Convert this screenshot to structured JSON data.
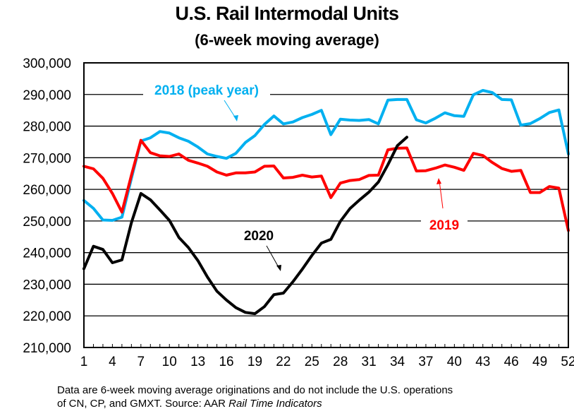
{
  "chart_data": {
    "type": "line",
    "title": "U.S. Rail Intermodal Units",
    "subtitle": "(6-week moving average)",
    "xlabel": "",
    "ylabel": "",
    "xlim": [
      1,
      52
    ],
    "ylim": [
      210000,
      300000
    ],
    "x_ticks": [
      1,
      4,
      7,
      10,
      13,
      16,
      19,
      22,
      25,
      28,
      31,
      34,
      37,
      40,
      43,
      46,
      49,
      52
    ],
    "y_ticks": [
      210000,
      220000,
      230000,
      240000,
      250000,
      260000,
      270000,
      280000,
      290000,
      300000
    ],
    "y_tick_labels": [
      "210,000",
      "220,000",
      "230,000",
      "240,000",
      "250,000",
      "260,000",
      "270,000",
      "280,000",
      "290,000",
      "300,000"
    ],
    "grid": true,
    "legend": "inline annotations",
    "series": [
      {
        "name": "2018 (peak year)",
        "label": "2018 (peak year)",
        "color": "#00B0F0",
        "x": [
          1,
          2,
          3,
          4,
          5,
          6,
          7,
          8,
          9,
          10,
          11,
          12,
          13,
          14,
          15,
          16,
          17,
          18,
          19,
          20,
          21,
          22,
          23,
          24,
          25,
          26,
          27,
          28,
          29,
          30,
          31,
          32,
          33,
          34,
          35,
          36,
          37,
          38,
          39,
          40,
          41,
          42,
          43,
          44,
          45,
          46,
          47,
          48,
          49,
          50,
          51,
          52
        ],
        "values": [
          256500,
          254000,
          250300,
          250200,
          251200,
          263500,
          275300,
          276300,
          278300,
          277800,
          276300,
          275200,
          273400,
          271200,
          270400,
          269800,
          271400,
          274800,
          277000,
          280500,
          283200,
          280700,
          281300,
          282700,
          283700,
          285000,
          277300,
          282200,
          281900,
          281800,
          282100,
          280700,
          288200,
          288400,
          288400,
          282000,
          281000,
          282500,
          284200,
          283300,
          283100,
          289900,
          291300,
          290600,
          288400,
          288300,
          280300,
          280800,
          282400,
          284300,
          285100,
          271200
        ]
      },
      {
        "name": "2019",
        "label": "2019",
        "color": "#FF0000",
        "x": [
          1,
          2,
          3,
          4,
          5,
          6,
          7,
          8,
          9,
          10,
          11,
          12,
          13,
          14,
          15,
          16,
          17,
          18,
          19,
          20,
          21,
          22,
          23,
          24,
          25,
          26,
          27,
          28,
          29,
          30,
          31,
          32,
          33,
          34,
          35,
          36,
          37,
          38,
          39,
          40,
          41,
          42,
          43,
          44,
          45,
          46,
          47,
          48,
          49,
          50,
          51,
          52
        ],
        "values": [
          267300,
          266500,
          263500,
          258700,
          252800,
          264500,
          275500,
          271600,
          270600,
          270400,
          271200,
          269200,
          268300,
          267300,
          265500,
          264500,
          265200,
          265200,
          265500,
          267300,
          267400,
          263600,
          263800,
          264500,
          263900,
          264200,
          257400,
          262000,
          262800,
          263100,
          264400,
          264500,
          272500,
          273000,
          273100,
          265800,
          265900,
          266700,
          267700,
          267000,
          266000,
          271400,
          270700,
          268500,
          266600,
          265700,
          266000,
          259000,
          259000,
          260900,
          260400,
          247000
        ]
      },
      {
        "name": "2020",
        "label": "2020",
        "color": "#000000",
        "x": [
          1,
          2,
          3,
          4,
          5,
          6,
          7,
          8,
          9,
          10,
          11,
          12,
          13,
          14,
          15,
          16,
          17,
          18,
          19,
          20,
          21,
          22,
          23,
          24,
          25,
          26,
          27,
          28,
          29,
          30,
          31,
          32,
          33,
          34,
          35
        ],
        "values": [
          234900,
          242000,
          241000,
          236800,
          237700,
          249500,
          258700,
          256700,
          253500,
          250200,
          244800,
          241600,
          237500,
          232300,
          227800,
          225000,
          222600,
          221100,
          220700,
          222900,
          226700,
          227200,
          230800,
          234800,
          239100,
          243000,
          244200,
          249900,
          253900,
          256600,
          259100,
          262300,
          267800,
          273800,
          276500
        ]
      }
    ],
    "annotations": [
      {
        "text": "2018 (peak year)",
        "color": "#00B0F0",
        "arrow_to_week": 16
      },
      {
        "text": "2019",
        "color": "#FF0000",
        "arrow_to_week": 38
      },
      {
        "text": "2020",
        "color": "#000000",
        "arrow_to_week": 22
      }
    ]
  },
  "footnote": {
    "line1": "Data are 6-week moving average originations and do not include the U.S. operations",
    "line2_prefix": "of CN, CP, and GMXT.   Source: AAR ",
    "line2_italic": "Rail Time Indicators"
  }
}
